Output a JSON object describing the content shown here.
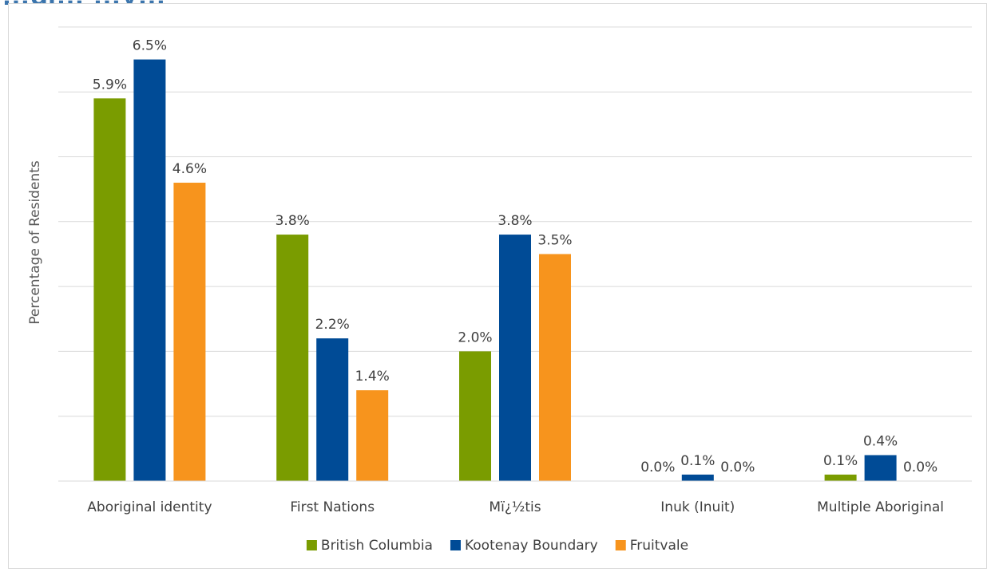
{
  "title_fragment": "…gi… …y…",
  "chart_data": {
    "type": "bar",
    "title": "",
    "ylabel": "Percentage of Residents",
    "xlabel": "",
    "ylim": [
      0,
      7.5
    ],
    "y_gridline_step": 1,
    "y_tick_labels_shown": false,
    "grid": true,
    "legend_position": "bottom",
    "value_label_suffix": "%",
    "categories": [
      "Aboriginal identity",
      "First Nations",
      "Mï¿½tis",
      "Inuk (Inuit)",
      "Multiple Aboriginal"
    ],
    "series": [
      {
        "name": "British Columbia",
        "color": "#7a9c00",
        "values": [
          5.9,
          3.8,
          2.0,
          0.0,
          0.1
        ]
      },
      {
        "name": "Kootenay Boundary",
        "color": "#004b96",
        "values": [
          6.5,
          2.2,
          3.8,
          0.1,
          0.4
        ]
      },
      {
        "name": "Fruitvale",
        "color": "#f7941d",
        "values": [
          4.6,
          1.4,
          3.5,
          0.0,
          0.0
        ]
      }
    ]
  }
}
